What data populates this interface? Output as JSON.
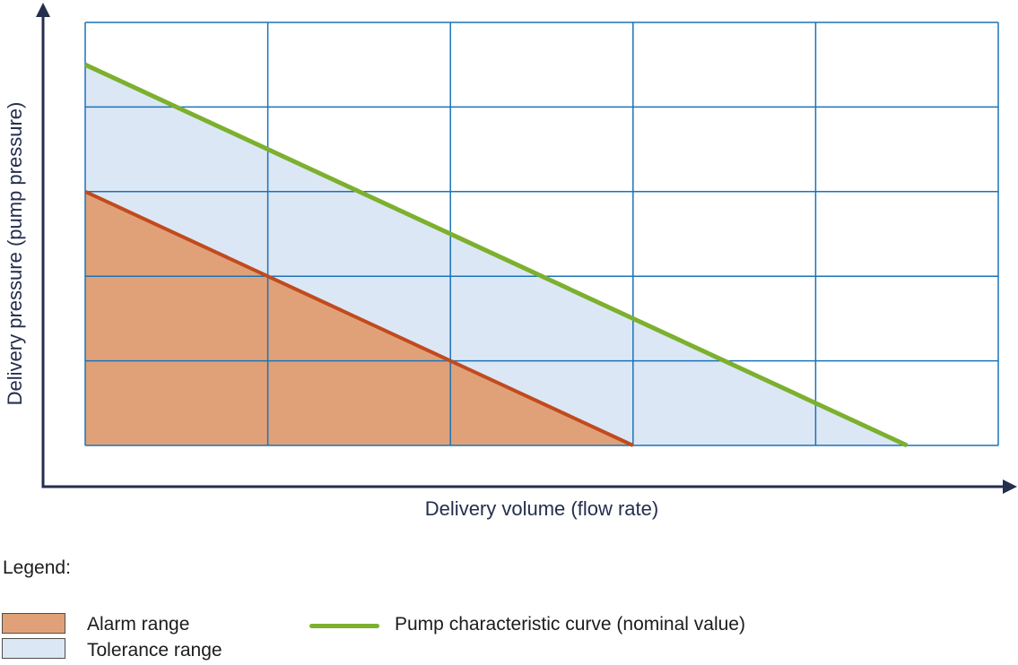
{
  "chart_data": {
    "type": "area",
    "title": "",
    "xlabel": "Delivery volume (flow rate)",
    "ylabel": "Delivery pressure (pump pressure)",
    "xlim": [
      0,
      5
    ],
    "ylim": [
      0,
      5
    ],
    "grid": true,
    "grid_step": 1,
    "grid_color": "#1a73b9",
    "axis_color": "#242e4e",
    "legend_position": "below",
    "series": [
      {
        "name": "Tolerance range",
        "kind": "area",
        "points": [
          [
            0,
            3
          ],
          [
            0,
            4.5
          ],
          [
            4.5,
            0
          ],
          [
            3,
            0
          ]
        ],
        "fill": "#dce7f5"
      },
      {
        "name": "Alarm range",
        "kind": "area",
        "points": [
          [
            0,
            0
          ],
          [
            0,
            3
          ],
          [
            3,
            0
          ]
        ],
        "fill": "#e0a178"
      },
      {
        "name": "Alarm range boundary",
        "kind": "line",
        "points": [
          [
            0,
            3
          ],
          [
            3,
            0
          ]
        ],
        "color": "#c14a1e",
        "width": 4
      },
      {
        "name": "Pump characteristic curve (nominal value)",
        "kind": "line",
        "points": [
          [
            0,
            4.5
          ],
          [
            4.5,
            0
          ]
        ],
        "color": "#7cb02e",
        "width": 5
      }
    ]
  },
  "legend": {
    "title": "Legend:",
    "items": [
      {
        "label": "Alarm range",
        "swatch": "area",
        "color": "#e0a178",
        "border": "#4d4d4d"
      },
      {
        "label": "Tolerance range",
        "swatch": "area",
        "color": "#dce7f5",
        "border": "#4d4d4d"
      },
      {
        "label": "Pump characteristic curve (nominal value)",
        "swatch": "line",
        "color": "#7cb02e"
      }
    ]
  }
}
